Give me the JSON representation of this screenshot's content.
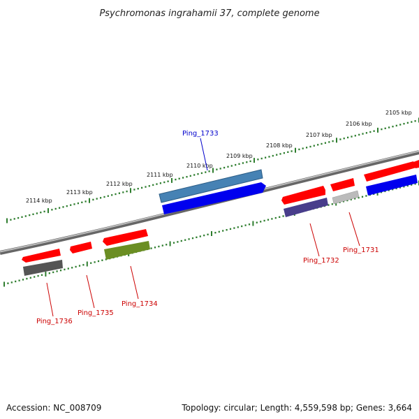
{
  "title": "Psychromonas ingrahamii 37, complete genome",
  "footer": {
    "accession": "Accession: NC_008709",
    "summary": "Topology: circular; Length: 4,559,598 bp; Genes: 3,664"
  },
  "colors": {
    "backbone": "#8a8a8a",
    "tick": "#2e7d2e",
    "cds_red": "#ff0000",
    "selected_label": "#0000cc",
    "label": "#cc0000",
    "gene_1736": "#555555",
    "gene_1734": "#6b8e23",
    "gene_1733": "#4682b4",
    "gene_1732": "#483d8b",
    "gene_1731": "#bbbbbb",
    "gene_blue": "#0000ee"
  },
  "kbp_labels": [
    "2114 kbp",
    "2113 kbp",
    "2112 kbp",
    "2111 kbp",
    "2110 kbp",
    "2109 kbp",
    "2108 kbp",
    "2107 kbp",
    "2106 kbp",
    "2105 kbp"
  ],
  "genes": [
    {
      "id": "Ping_1736",
      "color": "#555555",
      "label_color": "#cc0000"
    },
    {
      "id": "Ping_1735",
      "color": "#ff0000",
      "label_color": "#cc0000"
    },
    {
      "id": "Ping_1734",
      "color": "#6b8e23",
      "label_color": "#cc0000"
    },
    {
      "id": "Ping_1733",
      "color": "#4682b4",
      "label_color": "#0000cc"
    },
    {
      "id": "Ping_1732",
      "color": "#483d8b",
      "label_color": "#cc0000"
    },
    {
      "id": "Ping_1731",
      "color": "#bbbbbb",
      "label_color": "#cc0000"
    }
  ]
}
